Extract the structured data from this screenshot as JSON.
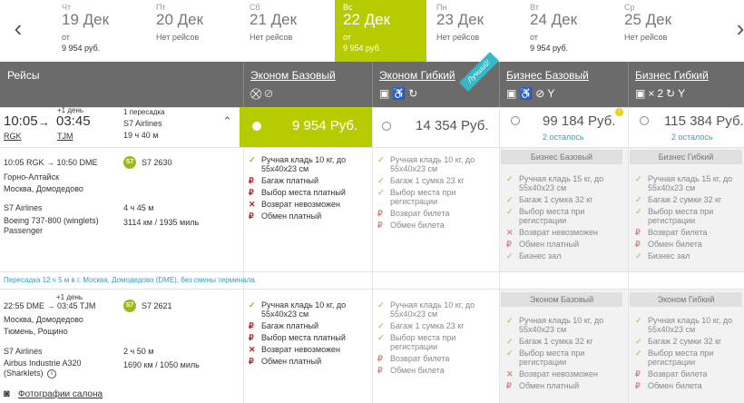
{
  "dates": [
    {
      "dow": "Чт",
      "day": "19 Дек",
      "sub": "от",
      "price": "9 954 руб."
    },
    {
      "dow": "Пт",
      "day": "20 Дек",
      "sub": "Нет рейсов",
      "price": ""
    },
    {
      "dow": "Сб",
      "day": "21 Дек",
      "sub": "Нет рейсов",
      "price": ""
    },
    {
      "dow": "Вс",
      "day": "22 Дек",
      "sub": "от",
      "price": "9 954 руб."
    },
    {
      "dow": "Пн",
      "day": "23 Дек",
      "sub": "Нет рейсов",
      "price": ""
    },
    {
      "dow": "Вт",
      "day": "24 Дек",
      "sub": "от",
      "price": "9 954 руб."
    },
    {
      "dow": "Ср",
      "day": "25 Дек",
      "sub": "Нет рейсов",
      "price": ""
    }
  ],
  "header": {
    "flights": "Рейсы",
    "fares": [
      "Эконом Базовый",
      "Эконом Гибкий",
      "Бизнес Базовый",
      "Бизнес Гибкий"
    ],
    "best": "Лучший!",
    "x2": "×2"
  },
  "trip": {
    "dep_time": "10:05",
    "arr_time": "03:45",
    "next_day": "+1 день",
    "dep_code": "RGK",
    "arr_code": "TJM",
    "transfers": "1 пересадка",
    "airline": "S7 Airlines",
    "duration": "19 ч 40 м",
    "prices": [
      "9 954 Руб.",
      "14 354 Руб.",
      "99 184 Руб.",
      "115 384 Руб."
    ],
    "left_note": "2 осталось"
  },
  "seg1": {
    "times": "10:05 RGK → 10:50 DME",
    "from": "Горно-Алтайск",
    "to": "Москва, Домодедово",
    "flight": "S7 2630",
    "logo": "S7",
    "airline": "S7 Airlines",
    "duration": "4 ч 45 м",
    "aircraft": "Boeing 737-800 (winglets) Passenger",
    "distance": "3114 км / 1935 миль"
  },
  "transfer": "Пересадка 12 ч 5 м в г. Москва, Домодедово (DME), без смены терминала.",
  "seg2": {
    "next_day": "+1 день",
    "times": "22:55 DME → 03:45 TJM",
    "from": "Москва, Домодедово",
    "to": "Тюмень, Рощино",
    "flight": "S7 2621",
    "logo": "S7",
    "airline": "S7 Airlines",
    "duration": "2 ч 50 м",
    "aircraft": "Airbus Industrie A320 (Sharklets)",
    "distance": "1690 км / 1050 миль",
    "photos": "Фотографии салона"
  },
  "features": {
    "eb": [
      "Ручная кладь 10 кг, до 55х40х23 см",
      "Багаж платный",
      "Выбор места платный",
      "Возврат невозможен",
      "Обмен платный"
    ],
    "ef": [
      "Ручная кладь 10 кг, до 55х40х23 см",
      "Багаж 1 сумка 23 кг",
      "Выбор места при регистрации",
      "Возврат билета",
      "Обмен билета"
    ],
    "bb": [
      "Ручная кладь 15 кг, до 55х40х23 см",
      "Багаж 1 сумка 32 кг",
      "Выбор места при регистрации",
      "Возврат невозможен",
      "Обмен платный",
      "Бизнес зал"
    ],
    "bf": [
      "Ручная кладь 15 кг, до 55х40х23 см",
      "Багаж 2 сумки 32 кг",
      "Выбор места при регистрации",
      "Возврат билета",
      "Обмен билета",
      "Бизнес зал"
    ],
    "eb2": [
      "Ручная кладь 10 кг, до 55х40х23 см",
      "Багаж 1 сумка 32 кг",
      "Выбор места при регистрации",
      "Возврат невозможен",
      "Обмен платный"
    ],
    "ef2": [
      "Ручная кладь 10 кг, до 55х40х23 см",
      "Багаж 2 сумки 32 кг",
      "Выбор места при регистрации",
      "Возврат билета",
      "Обмен билета"
    ],
    "bb_title": "Бизнес Базовый",
    "bf_title": "Бизнес Гибкий",
    "eb_title": "Эконом Базовый",
    "ef_title": "Эконом Гибкий"
  },
  "colors": {
    "accent": "#b6cc00",
    "header": "#6b6b6b",
    "link": "#2aa3c4",
    "pay": "#c81919"
  }
}
